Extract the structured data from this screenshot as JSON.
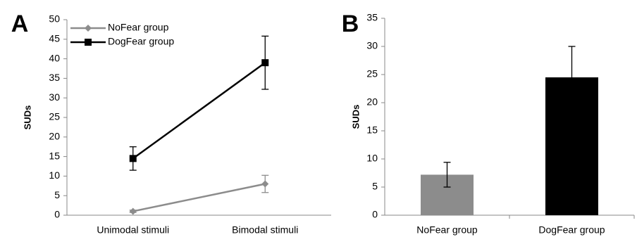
{
  "chart_data": [
    {
      "type": "line",
      "panel_label": "A",
      "y_label": "SUDs",
      "categories": [
        "Unimodal stimuli",
        "Bimodal stimuli"
      ],
      "series": [
        {
          "name": "NoFear group",
          "color": "#8c8c8c",
          "marker": "diamond",
          "values": [
            1,
            8
          ],
          "errors": [
            0.3,
            2.2
          ]
        },
        {
          "name": "DogFear group",
          "color": "#000000",
          "marker": "square",
          "values": [
            14.5,
            39
          ],
          "errors": [
            3,
            6.8
          ]
        }
      ],
      "ylim": [
        0,
        50
      ],
      "yticks": [
        0,
        5,
        10,
        15,
        20,
        25,
        30,
        35,
        40,
        45,
        50
      ],
      "legend": "upper left"
    },
    {
      "type": "bar",
      "panel_label": "B",
      "y_label": "SUDs",
      "categories": [
        "NoFear group",
        "DogFear group"
      ],
      "values": [
        7.2,
        24.5
      ],
      "errors": [
        2.2,
        5.5
      ],
      "colors": [
        "#8c8c8c",
        "#000000"
      ],
      "ylim": [
        0,
        35
      ],
      "yticks": [
        0,
        5,
        10,
        15,
        20,
        25,
        30,
        35
      ]
    }
  ]
}
